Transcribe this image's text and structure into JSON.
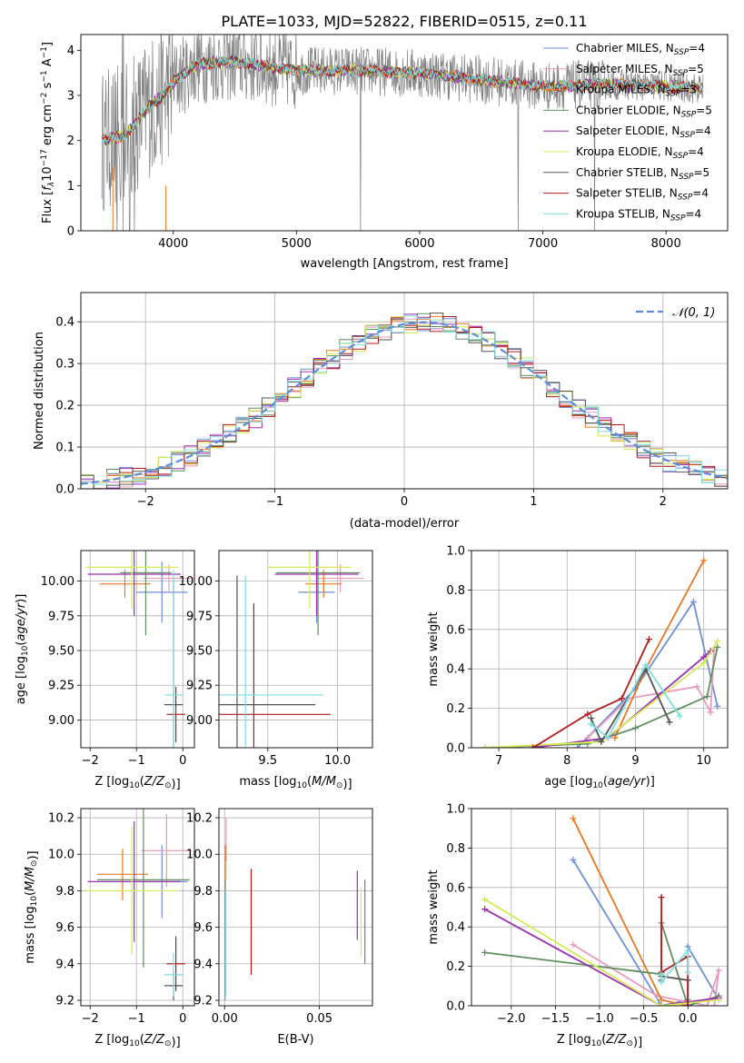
{
  "title": "PLATE=1033, MJD=52822, FIBERID=0515, z=0.11",
  "colors": {
    "chabrier_miles": "#6f8fd9",
    "salpeter_miles": "#e89ac0",
    "kroupa_miles": "#e87722",
    "chabrier_elodie": "#5f8f5f",
    "salpeter_elodie": "#9a2fb0",
    "kroupa_elodie": "#d6ea55",
    "chabrier_stelib": "#555555",
    "salpeter_stelib": "#b01c1c",
    "kroupa_stelib": "#7fdede",
    "data": "#808080",
    "normal": "#5b8ddb",
    "grid": "#b0b0b0"
  },
  "legend_models": [
    {
      "label": "Chabrier MILES, N",
      "sub": "SSP",
      "rest": "=4",
      "color": "#6f8fd9"
    },
    {
      "label": "Salpeter MILES, N",
      "sub": "SSP",
      "rest": "=5",
      "color": "#e89ac0"
    },
    {
      "label": "Kroupa MILES, N",
      "sub": "SSP",
      "rest": "=3",
      "color": "#e87722"
    },
    {
      "label": "Chabrier ELODIE, N",
      "sub": "SSP",
      "rest": "=5",
      "color": "#5f8f5f"
    },
    {
      "label": "Salpeter ELODIE, N",
      "sub": "SSP",
      "rest": "=4",
      "color": "#9a2fb0"
    },
    {
      "label": "Kroupa ELODIE, N",
      "sub": "SSP",
      "rest": "=4",
      "color": "#d6ea55"
    },
    {
      "label": "Chabrier STELIB, N",
      "sub": "SSP",
      "rest": "=5",
      "color": "#555555"
    },
    {
      "label": "Salpeter STELIB, N",
      "sub": "SSP",
      "rest": "=4",
      "color": "#b01c1c"
    },
    {
      "label": "Kroupa STELIB, N",
      "sub": "SSP",
      "rest": "=4",
      "color": "#7fdede"
    }
  ],
  "chart_data": [
    {
      "id": "spectrum",
      "type": "line",
      "xlabel": "wavelength [Angstrom, rest frame]",
      "ylabel_parts": [
        "Flux [",
        "f",
        "λ",
        "10",
        "−17",
        " erg cm",
        "−2",
        " s",
        "−1",
        " A",
        "−1",
        "]"
      ],
      "xlim": [
        3250,
        8500
      ],
      "ylim": [
        0,
        4.35
      ],
      "xticks": [
        4000,
        5000,
        6000,
        7000,
        8000
      ],
      "yticks": [
        0,
        1,
        2,
        3,
        4
      ],
      "continuum": [
        [
          3420,
          2.0
        ],
        [
          3600,
          2.1
        ],
        [
          3700,
          2.4
        ],
        [
          3800,
          2.75
        ],
        [
          3900,
          2.95
        ],
        [
          4000,
          3.3
        ],
        [
          4200,
          3.7
        ],
        [
          4500,
          3.75
        ],
        [
          5000,
          3.55
        ],
        [
          5500,
          3.55
        ],
        [
          6000,
          3.5
        ],
        [
          6500,
          3.35
        ],
        [
          7000,
          3.2
        ],
        [
          7500,
          3.25
        ],
        [
          8000,
          3.2
        ],
        [
          8300,
          3.15
        ]
      ],
      "grid": false
    },
    {
      "id": "residuals",
      "type": "line",
      "xlabel": "(data-model)/error",
      "ylabel": "Normed distribution",
      "xlim": [
        -2.5,
        2.5
      ],
      "ylim": [
        0,
        0.47
      ],
      "xticks": [
        -2,
        -1,
        0,
        1,
        2
      ],
      "yticks": [
        0.0,
        0.1,
        0.2,
        0.3,
        0.4
      ],
      "legend": "𝒩(0, 1)",
      "legend_loc": "top-right",
      "bin_width": 0.1,
      "normal": {
        "mean": 0.15,
        "sigma": 1.0
      },
      "grid": true
    },
    {
      "id": "age_vs_Z",
      "type": "scatter",
      "xlabel": "Z [log10(Z/Z⊙)]",
      "ylabel": "age  [log10(age/yr)]",
      "xlim": [
        -2.2,
        0.25
      ],
      "ylim": [
        8.8,
        10.22
      ],
      "xticks": [
        -2,
        -1,
        0
      ],
      "yticks": [
        9.0,
        9.25,
        9.5,
        9.75,
        10.0
      ],
      "points": [
        {
          "c": "chabrier_miles",
          "x": -0.45,
          "y": 9.92,
          "xe": 0.55,
          "ye": 0.22
        },
        {
          "c": "salpeter_miles",
          "x": -0.3,
          "y": 10.02,
          "xe": 0.55,
          "ye": 0.1
        },
        {
          "c": "kroupa_miles",
          "x": -1.25,
          "y": 9.98,
          "xe": 0.55,
          "ye": 0.1
        },
        {
          "c": "chabrier_elodie",
          "x": -0.8,
          "y": 10.06,
          "xe": 0.55,
          "ye": 0.45
        },
        {
          "c": "salpeter_elodie",
          "x": -1.05,
          "y": 10.05,
          "xe": 1.0,
          "ye": 0.3
        },
        {
          "c": "kroupa_elodie",
          "x": -1.1,
          "y": 10.1,
          "xe": 1.0,
          "ye": 0.3
        },
        {
          "c": "chabrier_stelib",
          "x": -0.2,
          "y": 9.11,
          "xe": 0.2,
          "ye": 0.9
        },
        {
          "c": "salpeter_stelib",
          "x": -0.15,
          "y": 9.04,
          "xe": 0.2,
          "ye": 0.2
        },
        {
          "c": "kroupa_stelib",
          "x": -0.2,
          "y": 9.18,
          "xe": 0.2,
          "ye": 0.9
        }
      ],
      "grid": true
    },
    {
      "id": "age_vs_mass",
      "type": "scatter",
      "xlabel": "mass [log10(M/M⊙)]",
      "ylabel": "",
      "xlim": [
        9.15,
        10.25
      ],
      "ylim": [
        8.8,
        10.22
      ],
      "xticks": [
        9.5,
        10.0
      ],
      "yticks": [
        9.0,
        9.25,
        9.5,
        9.75,
        10.0
      ],
      "points": [
        {
          "c": "chabrier_miles",
          "x": 9.85,
          "y": 9.92,
          "xe": 0.13,
          "ye": 0.22
        },
        {
          "c": "salpeter_miles",
          "x": 10.02,
          "y": 10.02,
          "xe": 0.17,
          "ye": 0.1
        },
        {
          "c": "kroupa_miles",
          "x": 9.9,
          "y": 9.98,
          "xe": 0.13,
          "ye": 0.1
        },
        {
          "c": "chabrier_elodie",
          "x": 9.86,
          "y": 10.06,
          "xe": 0.3,
          "ye": 0.45
        },
        {
          "c": "salpeter_elodie",
          "x": 9.85,
          "y": 10.05,
          "xe": 0.3,
          "ye": 0.3
        },
        {
          "c": "kroupa_elodie",
          "x": 9.8,
          "y": 10.1,
          "xe": 0.3,
          "ye": 0.3
        },
        {
          "c": "chabrier_stelib",
          "x": 9.28,
          "y": 9.11,
          "xe": 0.56,
          "ye": 0.93
        },
        {
          "c": "salpeter_stelib",
          "x": 9.4,
          "y": 9.04,
          "xe": 0.55,
          "ye": 0.8
        },
        {
          "c": "kroupa_stelib",
          "x": 9.34,
          "y": 9.18,
          "xe": 0.56,
          "ye": 0.86
        }
      ],
      "grid": true
    },
    {
      "id": "weight_vs_age",
      "type": "line",
      "xlabel": "age  [log10(age/yr)]",
      "ylabel": "mass weight",
      "xlim": [
        6.6,
        10.35
      ],
      "ylim": [
        0,
        1.0
      ],
      "xticks": [
        7,
        8,
        9,
        10
      ],
      "yticks": [
        0.0,
        0.2,
        0.4,
        0.6,
        0.8,
        1.0
      ],
      "series": [
        {
          "c": "chabrier_miles",
          "x": [
            8.15,
            9.0,
            9.85,
            10.2
          ],
          "y": [
            0.0,
            0.3,
            0.74,
            0.21
          ]
        },
        {
          "c": "salpeter_miles",
          "x": [
            8.3,
            8.9,
            9.9,
            10.1,
            10.15
          ],
          "y": [
            0.05,
            0.25,
            0.31,
            0.18,
            0.5
          ]
        },
        {
          "c": "kroupa_miles",
          "x": [
            8.7,
            9.15,
            10.0
          ],
          "y": [
            0.05,
            0.4,
            0.95
          ]
        },
        {
          "c": "chabrier_elodie",
          "x": [
            6.8,
            8.3,
            9.0,
            10.05,
            10.2
          ],
          "y": [
            0.0,
            0.02,
            0.1,
            0.26,
            0.51
          ]
        },
        {
          "c": "salpeter_elodie",
          "x": [
            7.5,
            8.6,
            10.0,
            10.1
          ],
          "y": [
            0.0,
            0.05,
            0.46,
            0.49
          ]
        },
        {
          "c": "kroupa_elodie",
          "x": [
            6.8,
            8.5,
            10.0,
            10.2
          ],
          "y": [
            0.0,
            0.03,
            0.43,
            0.54
          ]
        },
        {
          "c": "chabrier_stelib",
          "x": [
            8.35,
            8.5,
            9.15,
            9.5
          ],
          "y": [
            0.15,
            0.03,
            0.4,
            0.13
          ]
        },
        {
          "c": "salpeter_stelib",
          "x": [
            7.5,
            8.3,
            8.8,
            9.2
          ],
          "y": [
            0.0,
            0.17,
            0.25,
            0.55
          ]
        },
        {
          "c": "kroupa_stelib",
          "x": [
            8.35,
            8.6,
            9.15,
            9.65
          ],
          "y": [
            0.12,
            0.05,
            0.42,
            0.16
          ]
        }
      ],
      "grid": true
    },
    {
      "id": "mass_vs_Z",
      "type": "scatter",
      "xlabel": "Z [log10(Z/Z⊙)]",
      "ylabel": "mass [log10(M/M⊙)]",
      "xlim": [
        -2.2,
        0.25
      ],
      "ylim": [
        9.17,
        10.25
      ],
      "xticks": [
        -2,
        -1,
        0
      ],
      "yticks": [
        9.2,
        9.4,
        9.6,
        9.8,
        10.0,
        10.2
      ],
      "points": [
        {
          "c": "chabrier_miles",
          "x": -0.45,
          "y": 9.85,
          "xe": 0.55,
          "ye": 0.2
        },
        {
          "c": "salpeter_miles",
          "x": -0.35,
          "y": 10.02,
          "xe": 0.55,
          "ye": 0.2
        },
        {
          "c": "kroupa_miles",
          "x": -1.3,
          "y": 9.89,
          "xe": 0.55,
          "ye": 0.14
        },
        {
          "c": "chabrier_elodie",
          "x": -0.85,
          "y": 9.86,
          "xe": 1.0,
          "ye": 0.48
        },
        {
          "c": "salpeter_elodie",
          "x": -1.05,
          "y": 9.85,
          "xe": 1.0,
          "ye": 0.33
        },
        {
          "c": "kroupa_elodie",
          "x": -1.1,
          "y": 9.8,
          "xe": 1.0,
          "ye": 0.35
        },
        {
          "c": "chabrier_stelib",
          "x": -0.2,
          "y": 9.28,
          "xe": 0.2,
          "ye": 0.08
        },
        {
          "c": "salpeter_stelib",
          "x": -0.15,
          "y": 9.4,
          "xe": 0.2,
          "ye": 0.15
        },
        {
          "c": "kroupa_stelib",
          "x": -0.2,
          "y": 9.34,
          "xe": 0.2,
          "ye": 0.12
        }
      ],
      "grid": true
    },
    {
      "id": "mass_vs_ebv",
      "type": "scatter",
      "xlabel": "E(B-V)",
      "ylabel": "",
      "xlim": [
        -0.003,
        0.078
      ],
      "ylim": [
        9.17,
        10.25
      ],
      "xticks": [
        0.0,
        0.05
      ],
      "yticks": [
        9.2,
        9.4,
        9.6,
        9.8,
        10.0,
        10.2
      ],
      "vlines": [
        {
          "c": "salpeter_miles",
          "x": 0.0008,
          "y0": 9.96,
          "y1": 10.2
        },
        {
          "c": "kroupa_miles",
          "x": 0.0004,
          "y0": 9.75,
          "y1": 10.05
        },
        {
          "c": "chabrier_elodie",
          "x": 0.0003,
          "y0": 9.4,
          "y1": 9.86
        },
        {
          "c": "chabrier_miles",
          "x": 0.0002,
          "y0": 9.2,
          "y1": 9.85
        },
        {
          "c": "kroupa_stelib",
          "x": 0.0006,
          "y0": 9.22,
          "y1": 9.8
        },
        {
          "c": "salpeter_stelib",
          "x": 0.014,
          "y0": 9.34,
          "y1": 9.92
        },
        {
          "c": "salpeter_elodie",
          "x": 0.07,
          "y0": 9.53,
          "y1": 9.91
        },
        {
          "c": "kroupa_elodie",
          "x": 0.072,
          "y0": 9.44,
          "y1": 9.82
        },
        {
          "c": "chabrier_elodie",
          "x": 0.074,
          "y0": 9.4,
          "y1": 9.86
        }
      ],
      "grid": true
    },
    {
      "id": "weight_vs_Z",
      "type": "line",
      "xlabel": "Z [log10(Z/Z⊙)]",
      "ylabel": "mass weight",
      "xlim": [
        -2.45,
        0.45
      ],
      "ylim": [
        0,
        1.0
      ],
      "xticks": [
        -2.0,
        -1.5,
        -1.0,
        -0.5,
        0.0
      ],
      "yticks": [
        0.0,
        0.2,
        0.4,
        0.6,
        0.8,
        1.0
      ],
      "series": [
        {
          "c": "chabrier_miles",
          "x": [
            -1.3,
            -0.3,
            0.0,
            0.0,
            0.35
          ],
          "y": [
            0.74,
            0.0,
            0.03,
            0.3,
            0.03
          ]
        },
        {
          "c": "salpeter_miles",
          "x": [
            -1.3,
            -0.35,
            0.22,
            0.35,
            0.3
          ],
          "y": [
            0.31,
            0.05,
            0.0,
            0.18,
            0.0
          ]
        },
        {
          "c": "kroupa_miles",
          "x": [
            -1.3,
            -0.3,
            0.0
          ],
          "y": [
            0.95,
            0.03,
            0.0
          ]
        },
        {
          "c": "chabrier_elodie",
          "x": [
            -2.3,
            -0.3,
            -0.3,
            0.0,
            0.35
          ],
          "y": [
            0.27,
            0.16,
            0.42,
            0.0,
            0.05
          ]
        },
        {
          "c": "salpeter_elodie",
          "x": [
            -2.3,
            -0.3,
            0.35
          ],
          "y": [
            0.49,
            0.0,
            0.04
          ]
        },
        {
          "c": "kroupa_elodie",
          "x": [
            -2.3,
            -0.3,
            0.35
          ],
          "y": [
            0.54,
            0.0,
            0.03
          ]
        },
        {
          "c": "chabrier_stelib",
          "x": [
            -0.3,
            -0.3,
            0.0,
            0.0
          ],
          "y": [
            0.13,
            0.15,
            0.13,
            0.0
          ]
        },
        {
          "c": "salpeter_stelib",
          "x": [
            -0.3,
            -0.3,
            0.0,
            0.0
          ],
          "y": [
            0.55,
            0.17,
            0.25,
            0.0
          ]
        },
        {
          "c": "kroupa_stelib",
          "x": [
            -0.3,
            -0.3,
            0.0,
            0.0
          ],
          "y": [
            0.16,
            0.12,
            0.28,
            0.17
          ]
        }
      ],
      "grid": true
    }
  ]
}
